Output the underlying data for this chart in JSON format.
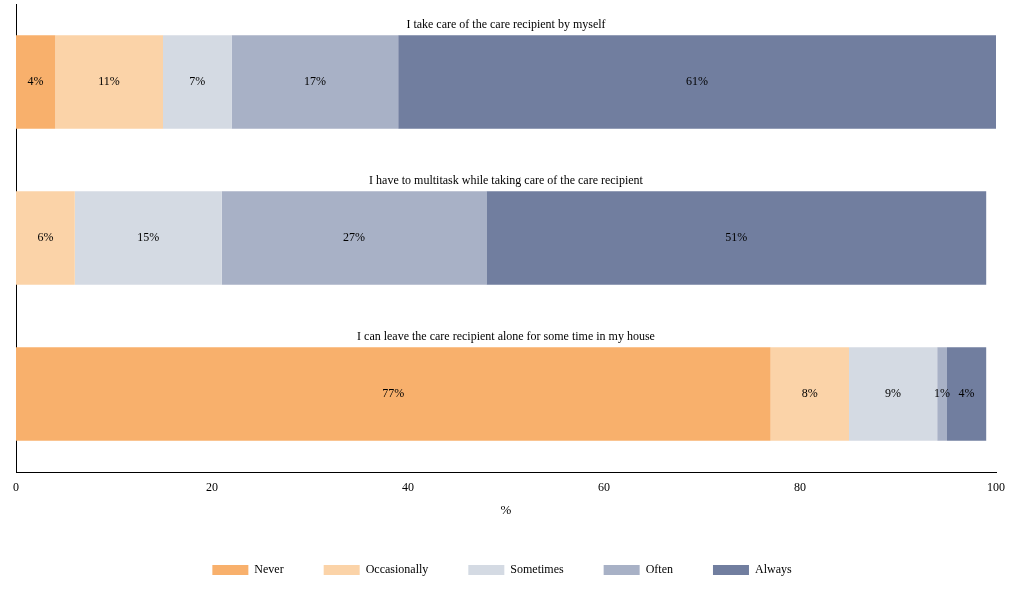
{
  "chart_data": {
    "type": "bar",
    "orientation": "horizontal",
    "stacked": true,
    "categories": [
      "I take care of the care recipient by myself",
      "I have to multitask while taking care of the care recipient",
      "I can leave the care recipient alone for some time in my house"
    ],
    "series": [
      {
        "name": "Never",
        "color": "#f8b06c",
        "values": [
          4,
          0,
          77
        ],
        "value_labels": [
          "4%",
          null,
          "77%"
        ]
      },
      {
        "name": "Occasionally",
        "color": "#fbd3a8",
        "values": [
          11,
          6,
          8
        ],
        "value_labels": [
          "11%",
          "6%",
          "8%"
        ]
      },
      {
        "name": "Sometimes",
        "color": "#d4dae3",
        "values": [
          7,
          15,
          9
        ],
        "value_labels": [
          "7%",
          "15%",
          "9%"
        ]
      },
      {
        "name": "Often",
        "color": "#a8b1c6",
        "values": [
          17,
          27,
          1
        ],
        "value_labels": [
          "17%",
          "27%",
          "1%"
        ]
      },
      {
        "name": "Always",
        "color": "#717e9f",
        "values": [
          61,
          51,
          4
        ],
        "value_labels": [
          "61%",
          "51%",
          "4%"
        ]
      }
    ],
    "xlim": [
      0,
      100
    ],
    "xticks": [
      0,
      20,
      40,
      60,
      80,
      100
    ],
    "xlabel": "%",
    "grid": false,
    "legend": "bottom"
  }
}
